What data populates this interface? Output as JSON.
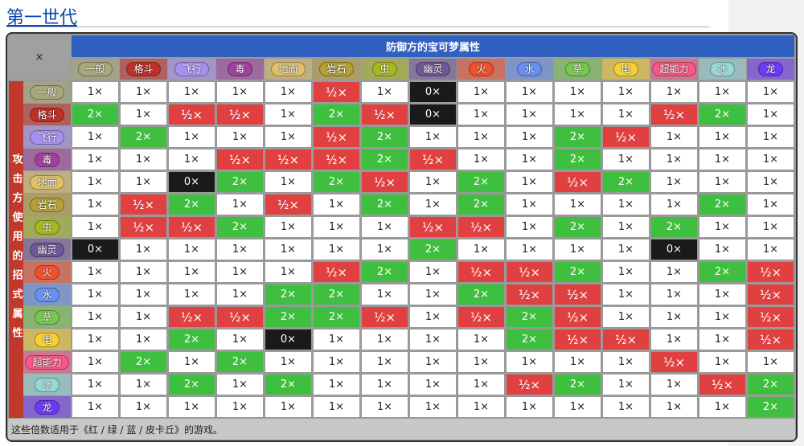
{
  "title": "第一世代",
  "table": {
    "corner": "×",
    "column_header": "防御方的宝可梦属性",
    "row_header": "攻击方使用的招式属性",
    "types": [
      "一般",
      "格斗",
      "飞行",
      "毒",
      "地面",
      "岩石",
      "虫",
      "幽灵",
      "火",
      "水",
      "草",
      "电",
      "超能力",
      "冰",
      "龙"
    ],
    "colors": [
      "#a8a878",
      "#c03028",
      "#a890f0",
      "#a040a0",
      "#e0c068",
      "#b8a038",
      "#a8b820",
      "#705898",
      "#f05030",
      "#6890f0",
      "#78c850",
      "#f8d030",
      "#f85888",
      "#98d8d8",
      "#7038f8"
    ],
    "rows": [
      [
        "1×",
        "1×",
        "1×",
        "1×",
        "1×",
        "½×",
        "1×",
        "0×",
        "1×",
        "1×",
        "1×",
        "1×",
        "1×",
        "1×",
        "1×"
      ],
      [
        "2×",
        "1×",
        "½×",
        "½×",
        "1×",
        "2×",
        "½×",
        "0×",
        "1×",
        "1×",
        "1×",
        "1×",
        "½×",
        "2×",
        "1×"
      ],
      [
        "1×",
        "2×",
        "1×",
        "1×",
        "1×",
        "½×",
        "2×",
        "1×",
        "1×",
        "1×",
        "2×",
        "½×",
        "1×",
        "1×",
        "1×"
      ],
      [
        "1×",
        "1×",
        "1×",
        "½×",
        "½×",
        "½×",
        "2×",
        "½×",
        "1×",
        "1×",
        "2×",
        "1×",
        "1×",
        "1×",
        "1×"
      ],
      [
        "1×",
        "1×",
        "0×",
        "2×",
        "1×",
        "2×",
        "½×",
        "1×",
        "2×",
        "1×",
        "½×",
        "2×",
        "1×",
        "1×",
        "1×"
      ],
      [
        "1×",
        "½×",
        "2×",
        "1×",
        "½×",
        "1×",
        "2×",
        "1×",
        "2×",
        "1×",
        "1×",
        "1×",
        "1×",
        "2×",
        "1×"
      ],
      [
        "1×",
        "½×",
        "½×",
        "2×",
        "1×",
        "1×",
        "1×",
        "½×",
        "½×",
        "1×",
        "2×",
        "1×",
        "2×",
        "1×",
        "1×"
      ],
      [
        "0×",
        "1×",
        "1×",
        "1×",
        "1×",
        "1×",
        "1×",
        "2×",
        "1×",
        "1×",
        "1×",
        "1×",
        "0×",
        "1×",
        "1×"
      ],
      [
        "1×",
        "1×",
        "1×",
        "1×",
        "1×",
        "½×",
        "2×",
        "1×",
        "½×",
        "½×",
        "2×",
        "1×",
        "1×",
        "2×",
        "½×"
      ],
      [
        "1×",
        "1×",
        "1×",
        "1×",
        "2×",
        "2×",
        "1×",
        "1×",
        "2×",
        "½×",
        "½×",
        "1×",
        "1×",
        "1×",
        "½×"
      ],
      [
        "1×",
        "1×",
        "½×",
        "½×",
        "2×",
        "2×",
        "½×",
        "1×",
        "½×",
        "2×",
        "½×",
        "1×",
        "1×",
        "1×",
        "½×"
      ],
      [
        "1×",
        "1×",
        "2×",
        "1×",
        "0×",
        "1×",
        "1×",
        "1×",
        "1×",
        "2×",
        "½×",
        "½×",
        "1×",
        "1×",
        "½×"
      ],
      [
        "1×",
        "2×",
        "1×",
        "2×",
        "1×",
        "1×",
        "1×",
        "1×",
        "1×",
        "1×",
        "1×",
        "1×",
        "½×",
        "1×",
        "1×"
      ],
      [
        "1×",
        "1×",
        "2×",
        "1×",
        "2×",
        "1×",
        "1×",
        "1×",
        "1×",
        "½×",
        "2×",
        "1×",
        "1×",
        "½×",
        "2×"
      ],
      [
        "1×",
        "1×",
        "1×",
        "1×",
        "1×",
        "1×",
        "1×",
        "1×",
        "1×",
        "1×",
        "1×",
        "1×",
        "1×",
        "1×",
        "2×"
      ]
    ],
    "footnote": "这些倍数适用于《红 / 绿 / 蓝 / 皮卡丘》的游戏。"
  }
}
